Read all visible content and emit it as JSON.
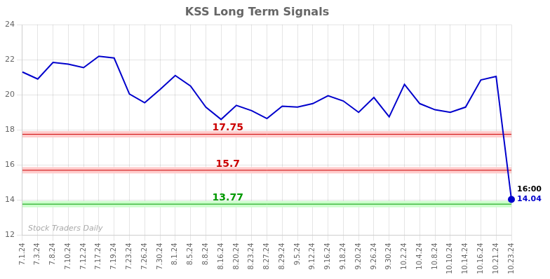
{
  "chart_data": {
    "type": "line",
    "title": "KSS Long Term Signals",
    "categories": [
      "7.1.24",
      "7.3.24",
      "7.8.24",
      "7.10.24",
      "7.12.24",
      "7.17.24",
      "7.19.24",
      "7.23.24",
      "7.26.24",
      "7.30.24",
      "8.1.24",
      "8.5.24",
      "8.8.24",
      "8.16.24",
      "8.20.24",
      "8.23.24",
      "8.27.24",
      "8.29.24",
      "9.5.24",
      "9.12.24",
      "9.16.24",
      "9.18.24",
      "9.20.24",
      "9.26.24",
      "9.30.24",
      "10.2.24",
      "10.4.24",
      "10.8.24",
      "10.10.24",
      "10.14.24",
      "10.16.24",
      "10.21.24",
      "10.23.24"
    ],
    "values": [
      21.3,
      20.9,
      21.85,
      21.75,
      21.55,
      22.2,
      22.1,
      20.05,
      19.55,
      20.3,
      21.1,
      20.5,
      19.3,
      18.6,
      19.4,
      19.1,
      18.65,
      19.35,
      19.3,
      19.5,
      19.95,
      19.65,
      19.0,
      19.85,
      18.75,
      20.6,
      19.5,
      19.15,
      19.0,
      19.3,
      20.85,
      21.05,
      14.04
    ],
    "color": "#0000cc",
    "marker": "circle",
    "ylim": [
      12,
      24
    ],
    "yticks": [
      12,
      14,
      16,
      18,
      20,
      22,
      24
    ],
    "grid": true,
    "hlines": [
      {
        "value": 17.75,
        "label": "17.75",
        "color": "#cc0000",
        "band_color": "#ffcccc"
      },
      {
        "value": 15.7,
        "label": "15.7",
        "color": "#cc0000",
        "band_color": "#ffcccc"
      },
      {
        "value": 13.77,
        "label": "13.77",
        "color": "#009900",
        "band_color": "#ccffcc"
      }
    ],
    "annotations": [
      {
        "text": "16:00",
        "color": "#000000"
      },
      {
        "text": "14.04",
        "color": "#0000cc"
      }
    ],
    "watermark": "Stock Traders Daily"
  }
}
